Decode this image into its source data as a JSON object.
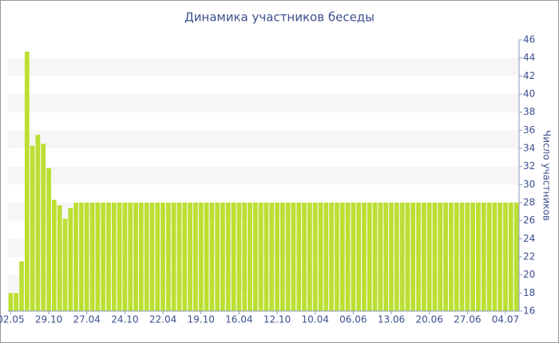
{
  "chart_data": {
    "type": "bar",
    "title": "Динамика участников беседы",
    "y_label": "Число участников",
    "categories": [
      "02.05",
      null,
      null,
      null,
      null,
      null,
      null,
      "29.10",
      null,
      null,
      null,
      null,
      null,
      null,
      "27.04",
      null,
      null,
      null,
      null,
      null,
      null,
      "24.10",
      null,
      null,
      null,
      null,
      null,
      null,
      "22.04",
      null,
      null,
      null,
      null,
      null,
      null,
      "19.10",
      null,
      null,
      null,
      null,
      null,
      null,
      "16.04",
      null,
      null,
      null,
      null,
      null,
      null,
      "12.10",
      null,
      null,
      null,
      null,
      null,
      null,
      "10.04",
      null,
      null,
      null,
      null,
      null,
      null,
      "06.06",
      null,
      null,
      null,
      null,
      null,
      null,
      "13.06",
      null,
      null,
      null,
      null,
      null,
      null,
      "20.06",
      null,
      null,
      null,
      null,
      null,
      null,
      "27.06",
      null,
      null,
      null,
      null,
      null,
      null,
      "04.07",
      null,
      null
    ],
    "values": [
      18,
      18,
      21.5,
      44.7,
      34.3,
      35.5,
      34.5,
      31.8,
      28.3,
      27.7,
      26.2,
      27.4,
      28,
      28,
      28,
      28,
      28,
      28,
      28,
      28,
      28,
      28,
      28,
      28,
      28,
      28,
      28,
      28,
      28,
      28,
      28,
      28,
      28,
      28,
      28,
      28,
      28,
      28,
      28,
      28,
      28,
      28,
      28,
      28,
      28,
      28,
      28,
      28,
      28,
      28,
      28,
      28,
      28,
      28,
      28,
      28,
      28,
      28,
      28,
      28,
      28,
      28,
      28,
      28,
      28,
      28,
      28,
      28,
      28,
      28,
      28,
      28,
      28,
      28,
      28,
      28,
      28,
      28,
      28,
      28,
      28,
      28,
      28,
      28,
      28,
      28,
      28,
      28,
      28,
      28,
      28,
      28,
      28,
      28
    ],
    "color": "#bbdf32",
    "ylim": [
      16,
      46
    ],
    "yticks": [
      16,
      18,
      20,
      22,
      24,
      26,
      28,
      30,
      32,
      34,
      36,
      38,
      40,
      42,
      44,
      46
    ],
    "grid": "bands",
    "y_axis_side": "right"
  }
}
